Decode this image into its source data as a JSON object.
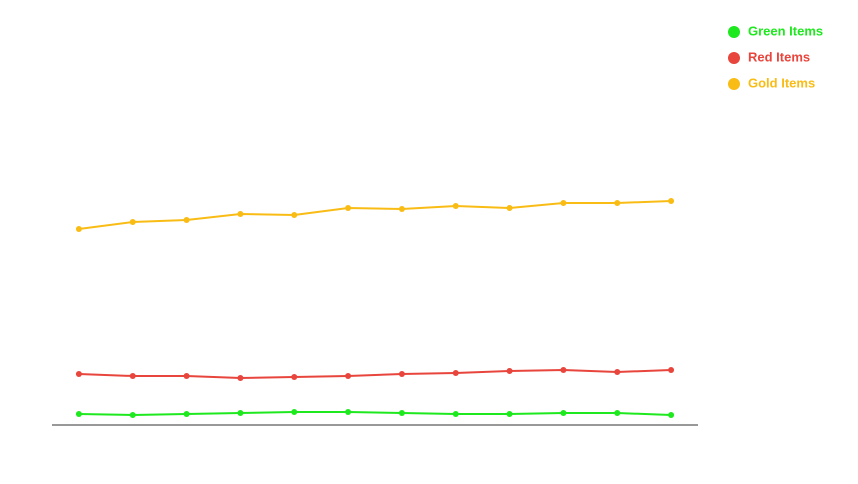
{
  "chart_data": {
    "type": "line",
    "categories": [
      null,
      null,
      null,
      null,
      null,
      null,
      null,
      null,
      null,
      null,
      null,
      null
    ],
    "series": [
      {
        "name": "Green Items",
        "color": "#1ee81e",
        "values": [
          2.75,
          2.5,
          2.75,
          3,
          3.25,
          3.25,
          3,
          2.75,
          2.75,
          3,
          3,
          2.5
        ]
      },
      {
        "name": "Red Items",
        "color": "#e8453c",
        "values": [
          12.75,
          12.25,
          12.25,
          11.75,
          12,
          12.25,
          12.75,
          13,
          13.5,
          13.75,
          13.25,
          13.75
        ]
      },
      {
        "name": "Gold Items",
        "color": "#f9bc15",
        "values": [
          49,
          50.75,
          51.25,
          52.75,
          52.5,
          54.25,
          54,
          54.75,
          54.25,
          55.5,
          55.5,
          56
        ]
      }
    ],
    "ylim": [
      0,
      100
    ],
    "legend": "top-right"
  }
}
